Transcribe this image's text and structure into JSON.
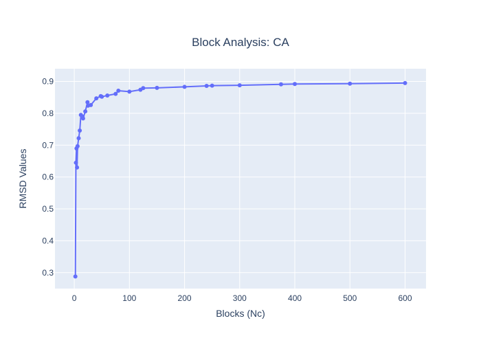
{
  "chart_data": {
    "type": "line",
    "title": "Block Analysis: CA",
    "xlabel": "Blocks (Nc)",
    "ylabel": "RMSD Values",
    "xlim": [
      -35,
      638
    ],
    "ylim": [
      0.25,
      0.94
    ],
    "x_ticks": [
      0,
      100,
      200,
      300,
      400,
      500,
      600
    ],
    "y_ticks": [
      0.3,
      0.4,
      0.5,
      0.6,
      0.7,
      0.8,
      0.9
    ],
    "grid": true,
    "legend": "none",
    "colors": {
      "line": "#636efa",
      "plot_bg": "#e5ecf6",
      "grid": "#ffffff",
      "text": "#2a3f5f"
    },
    "series": [
      {
        "x": [
          2,
          3,
          4,
          5,
          6,
          8,
          10,
          12,
          15,
          16,
          20,
          24,
          25,
          30,
          40,
          48,
          50,
          60,
          75,
          80,
          100,
          120,
          125,
          150,
          200,
          240,
          250,
          300,
          375,
          400,
          500,
          600
        ],
        "y": [
          0.288,
          0.645,
          0.69,
          0.63,
          0.697,
          0.722,
          0.746,
          0.795,
          0.79,
          0.784,
          0.806,
          0.835,
          0.824,
          0.826,
          0.847,
          0.854,
          0.852,
          0.856,
          0.861,
          0.871,
          0.868,
          0.874,
          0.879,
          0.88,
          0.883,
          0.886,
          0.887,
          0.888,
          0.891,
          0.892,
          0.893,
          0.895
        ]
      }
    ]
  }
}
